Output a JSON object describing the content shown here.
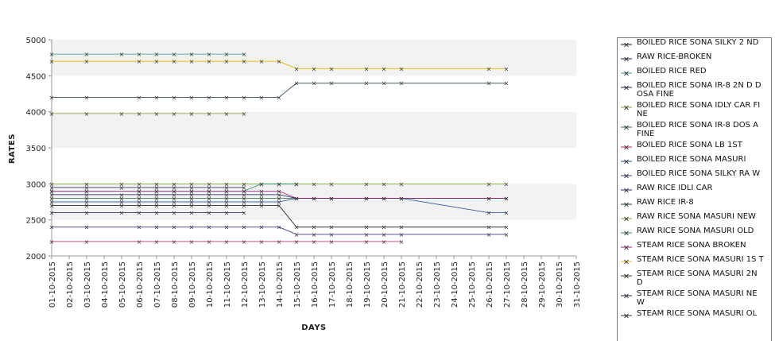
{
  "chart_data": {
    "type": "line",
    "xlabel": "DAYS",
    "ylabel": "RATES",
    "ylim": [
      2000,
      5000
    ],
    "yticks": [
      2000,
      2500,
      3000,
      3500,
      4000,
      4500,
      5000
    ],
    "grid": "alternating horizontal bands",
    "legend_position": "right",
    "categories": [
      "01-10-2015",
      "02-10-2015",
      "03-10-2015",
      "04-10-2015",
      "05-10-2015",
      "06-10-2015",
      "07-10-2015",
      "08-10-2015",
      "09-10-2015",
      "10-10-2015",
      "11-10-2015",
      "12-10-2015",
      "13-10-2015",
      "14-10-2015",
      "15-10-2015",
      "16-10-2015",
      "17-10-2015",
      "18-10-2015",
      "19-10-2015",
      "20-10-2015",
      "21-10-2015",
      "22-10-2015",
      "23-10-2015",
      "24-10-2015",
      "25-10-2015",
      "26-10-2015",
      "27-10-2015",
      "28-10-2015",
      "29-10-2015",
      "30-10-2015",
      "31-10-2015"
    ],
    "series": [
      {
        "name": "BOILED RICE SONA SILKY 2 ND",
        "color": "#111111",
        "values": [
          2700,
          null,
          2700,
          null,
          2700,
          2700,
          2700,
          2700,
          2700,
          2700,
          2700,
          2700,
          2700,
          2700,
          2400,
          2400,
          2400,
          null,
          2400,
          2400,
          2400,
          null,
          null,
          null,
          null,
          2400,
          2400,
          null,
          null,
          null,
          null
        ]
      },
      {
        "name": " RAW RICE-BROKEN",
        "color": "#1a1a5a",
        "values": [
          2850,
          null,
          2850,
          null,
          2850,
          2850,
          2850,
          2850,
          2850,
          2850,
          2850,
          2850,
          2850,
          2850,
          2800,
          2800,
          2800,
          null,
          2800,
          2800,
          2800,
          null,
          null,
          null,
          null,
          2800,
          2800,
          null,
          null,
          null,
          null
        ]
      },
      {
        "name": "BOILED RICE RED",
        "color": "#2e9a8c",
        "values": [
          4800,
          null,
          4800,
          null,
          4800,
          4800,
          4800,
          4800,
          4800,
          4800,
          4800,
          4800,
          null,
          null,
          null,
          null,
          null,
          null,
          null,
          null,
          null,
          null,
          null,
          null,
          null,
          null,
          null,
          null,
          null,
          null,
          null
        ]
      },
      {
        "name": "BOILED RICE SONA  IR-8 2N D DOSA FINE",
        "color": "#1a1a3a",
        "values": [
          2600,
          null,
          2600,
          null,
          2600,
          2600,
          2600,
          2600,
          2600,
          2600,
          2600,
          2600,
          null,
          null,
          null,
          null,
          null,
          null,
          null,
          null,
          null,
          null,
          null,
          null,
          null,
          null,
          null,
          null,
          null,
          null,
          null
        ]
      },
      {
        "name": "BOILED RICE SONA IDLY CAR  FINE",
        "color": "#9a9a3a",
        "values": [
          3975,
          null,
          3975,
          null,
          3975,
          3975,
          3975,
          3975,
          3975,
          3975,
          3975,
          3975,
          null,
          null,
          null,
          null,
          null,
          null,
          null,
          null,
          null,
          null,
          null,
          null,
          null,
          null,
          null,
          null,
          null,
          null,
          null
        ]
      },
      {
        "name": "BOILED RICE SONA IR-8 DOS A FINE",
        "color": "#2a6a4a",
        "values": [
          2800,
          null,
          2800,
          null,
          2800,
          2800,
          2800,
          2800,
          2800,
          2800,
          2800,
          2800,
          2800,
          2800,
          2800,
          2800,
          2800,
          null,
          2800,
          2800,
          2800,
          null,
          null,
          null,
          null,
          2800,
          2800,
          null,
          null,
          null,
          null
        ]
      },
      {
        "name": "BOILED RICE SONA LB 1ST",
        "color": "#cc1a4a",
        "values": [
          2200,
          null,
          2200,
          null,
          null,
          2200,
          2200,
          2200,
          2200,
          2200,
          2200,
          2200,
          2200,
          2200,
          2200,
          2200,
          2200,
          null,
          2200,
          2200,
          2200,
          null,
          null,
          null,
          null,
          null,
          null,
          null,
          null,
          null,
          null
        ]
      },
      {
        "name": "BOILED RICE SONA MASURI",
        "color": "#1a4a9a",
        "values": [
          2750,
          null,
          2750,
          null,
          2750,
          2750,
          2750,
          2750,
          2750,
          2750,
          2750,
          2750,
          2750,
          2750,
          2800,
          2800,
          2800,
          null,
          2800,
          2800,
          2800,
          null,
          null,
          null,
          null,
          2600,
          2600,
          null,
          null,
          null,
          null
        ]
      },
      {
        "name": "BOILED RICE SONA SILKY RA W",
        "color": "#3a3a8a",
        "values": [
          2400,
          null,
          2400,
          null,
          null,
          2400,
          2400,
          2400,
          2400,
          2400,
          2400,
          2400,
          2400,
          2400,
          2300,
          2300,
          2300,
          null,
          2300,
          2300,
          2300,
          null,
          null,
          null,
          null,
          2300,
          2300,
          null,
          null,
          null,
          null
        ]
      },
      {
        "name": "RAW RICE IDLI CAR",
        "color": "#2a2a6a",
        "values": [
          2950,
          null,
          2950,
          null,
          2950,
          2950,
          2950,
          2950,
          2950,
          2950,
          2950,
          2950,
          null,
          null,
          null,
          null,
          null,
          null,
          null,
          null,
          null,
          null,
          null,
          null,
          null,
          null,
          null,
          null,
          null,
          null,
          null
        ]
      },
      {
        "name": "RAW RICE IR-8",
        "color": "#1a3a2a",
        "values": [
          4200,
          null,
          4200,
          null,
          null,
          4200,
          4200,
          4200,
          4200,
          4200,
          4200,
          4200,
          4200,
          4200,
          4400,
          4400,
          4400,
          null,
          4400,
          4400,
          4400,
          null,
          null,
          null,
          null,
          4400,
          4400,
          null,
          null,
          null,
          null
        ]
      },
      {
        "name": "RAW RICE SONA MASURI NEW",
        "color": "#7aa03a",
        "values": [
          3000,
          null,
          3000,
          null,
          3000,
          3000,
          3000,
          3000,
          3000,
          3000,
          3000,
          3000,
          3000,
          3000,
          3000,
          3000,
          3000,
          null,
          3000,
          3000,
          3000,
          null,
          null,
          null,
          null,
          3000,
          3000,
          null,
          null,
          null,
          null
        ]
      },
      {
        "name": "RAW RICE SONA MASURI OLD",
        "color": "#2a8a6a",
        "values": [
          2900,
          null,
          2900,
          null,
          null,
          2900,
          2900,
          2900,
          2900,
          2900,
          2900,
          2900,
          3000,
          3000,
          3000,
          null,
          null,
          null,
          null,
          null,
          null,
          null,
          null,
          null,
          null,
          null,
          null,
          null,
          null,
          null,
          null
        ]
      },
      {
        "name": "STEAM RICE SONA BROKEN",
        "color": "#aa1a7a",
        "values": [
          2900,
          null,
          2900,
          null,
          null,
          2900,
          2900,
          2900,
          2900,
          2900,
          2900,
          2900,
          2900,
          2900,
          2800,
          2800,
          2800,
          null,
          2800,
          2800,
          2800,
          null,
          null,
          null,
          null,
          2800,
          2800,
          null,
          null,
          null,
          null
        ]
      },
      {
        "name": "STEAM RICE SONA MASURI 1S T",
        "color": "#e0b400",
        "values": [
          4700,
          null,
          4700,
          null,
          null,
          4700,
          4700,
          4700,
          4700,
          4700,
          4700,
          4700,
          4700,
          4700,
          4600,
          4600,
          4600,
          null,
          4600,
          4600,
          4600,
          null,
          null,
          null,
          null,
          4600,
          4600,
          null,
          null,
          null,
          null
        ]
      },
      {
        "name": "STEAM RICE SONA MASURI 2N D",
        "color": "#3a3a1a",
        "values": [
          null,
          null,
          null,
          null,
          null,
          null,
          null,
          null,
          null,
          null,
          null,
          null,
          null,
          null,
          null,
          null,
          null,
          null,
          null,
          null,
          null,
          null,
          null,
          null,
          null,
          null,
          null,
          null,
          null,
          null,
          null
        ]
      },
      {
        "name": "STEAM RICE SONA MASURI NE W",
        "color": "#1a2a4a",
        "values": [
          null,
          null,
          null,
          null,
          null,
          null,
          null,
          null,
          null,
          null,
          null,
          null,
          null,
          null,
          null,
          null,
          null,
          null,
          null,
          null,
          null,
          null,
          null,
          null,
          null,
          null,
          null,
          null,
          null,
          null,
          null
        ]
      },
      {
        "name": "STEAM RICE SONA MASURI OL",
        "color": "#333333",
        "values": [
          null,
          null,
          null,
          null,
          null,
          null,
          null,
          null,
          null,
          null,
          null,
          null,
          null,
          null,
          null,
          null,
          null,
          null,
          null,
          null,
          null,
          null,
          null,
          null,
          null,
          null,
          null,
          null,
          null,
          null,
          null
        ]
      }
    ]
  }
}
